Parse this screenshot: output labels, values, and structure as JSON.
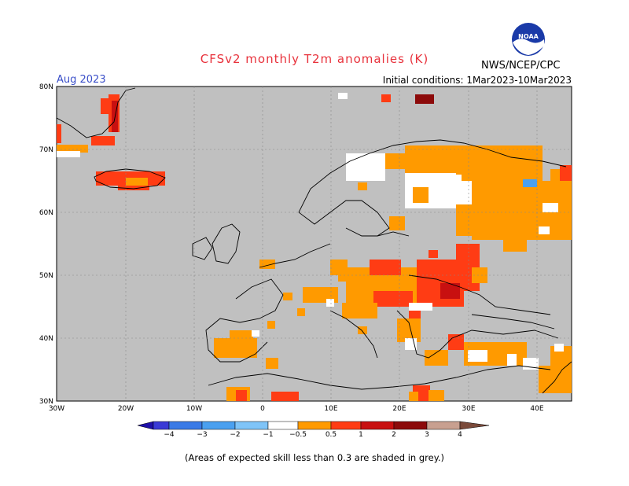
{
  "title": "CFSv2 monthly T2m anomalies (K)",
  "month": "Aug 2023",
  "initial_conditions": "Initial conditions: 1Mar2023-10Mar2023",
  "agency": "NWS/NCEP/CPC",
  "logo_text": "NOAA",
  "footer": "(Areas of expected skill less than 0.3 are shaded in grey.)",
  "map": {
    "lat_labels": [
      "80N",
      "70N",
      "60N",
      "50N",
      "40N",
      "30N"
    ],
    "lon_labels": [
      "30W",
      "20W",
      "10W",
      "0",
      "10E",
      "20E",
      "30E",
      "40E"
    ],
    "low_skill_color": "#c0c0c0"
  },
  "colorbar": {
    "labels": [
      "−4",
      "−3",
      "−2",
      "−1",
      "−0.5",
      "0.5",
      "1",
      "2",
      "3",
      "4"
    ],
    "colors": [
      "#1f10a8",
      "#3a3ad6",
      "#3a7ae6",
      "#4aa0f0",
      "#7fc4f8",
      "#ffffff",
      "#ff9a00",
      "#ff3c14",
      "#c81010",
      "#8c0a0a",
      "#c8a090",
      "#7a4a3a"
    ]
  }
}
